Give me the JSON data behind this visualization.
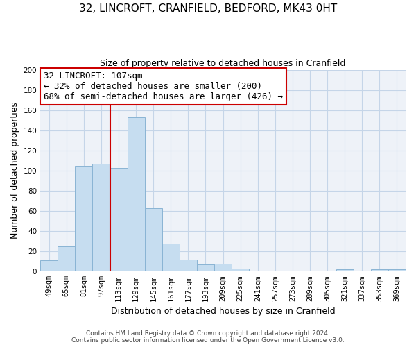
{
  "title_line1": "32, LINCROFT, CRANFIELD, BEDFORD, MK43 0HT",
  "title_line2": "Size of property relative to detached houses in Cranfield",
  "xlabel": "Distribution of detached houses by size in Cranfield",
  "ylabel": "Number of detached properties",
  "bar_labels": [
    "49sqm",
    "65sqm",
    "81sqm",
    "97sqm",
    "113sqm",
    "129sqm",
    "145sqm",
    "161sqm",
    "177sqm",
    "193sqm",
    "209sqm",
    "225sqm",
    "241sqm",
    "257sqm",
    "273sqm",
    "289sqm",
    "305sqm",
    "321sqm",
    "337sqm",
    "353sqm",
    "369sqm"
  ],
  "bar_values": [
    11,
    25,
    105,
    107,
    103,
    153,
    63,
    28,
    12,
    7,
    8,
    3,
    0,
    0,
    0,
    1,
    0,
    2,
    0,
    2,
    2
  ],
  "bar_color": "#c6ddf0",
  "bar_edge_color": "#8ab4d4",
  "ylim": [
    0,
    200
  ],
  "yticks": [
    0,
    20,
    40,
    60,
    80,
    100,
    120,
    140,
    160,
    180,
    200
  ],
  "vline_color": "#cc0000",
  "vline_x": 3.5,
  "annotation_title": "32 LINCROFT: 107sqm",
  "annotation_line1": "← 32% of detached houses are smaller (200)",
  "annotation_line2": "68% of semi-detached houses are larger (426) →",
  "footer_line1": "Contains HM Land Registry data © Crown copyright and database right 2024.",
  "footer_line2": "Contains public sector information licensed under the Open Government Licence v3.0.",
  "bg_color": "#eef2f8",
  "grid_color": "#c5d5e8",
  "title_fontsize": 11,
  "subtitle_fontsize": 9,
  "ylabel_fontsize": 9,
  "xlabel_fontsize": 9,
  "tick_fontsize": 7.5,
  "ann_fontsize": 9,
  "footer_fontsize": 6.5
}
